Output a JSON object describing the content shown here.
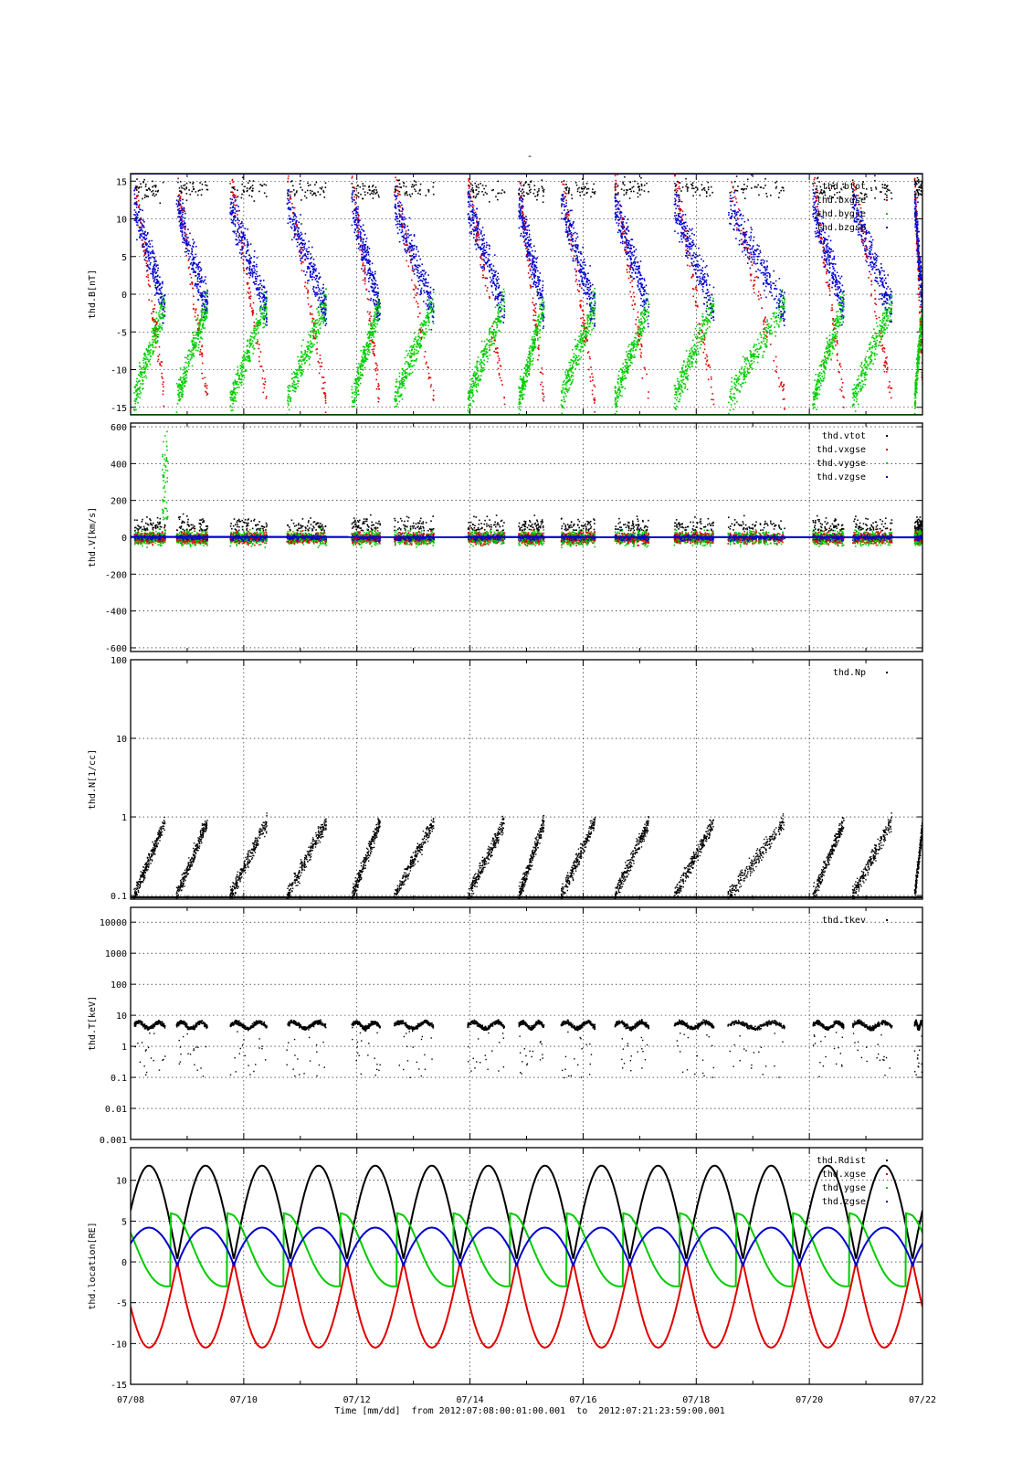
{
  "figure": {
    "top_label": "-",
    "x_axis_label": "Time [mm/dd]  from 2012:07:08:00:01:00.001  to  2012:07:21:23:59:00.001",
    "x_ticks": [
      "07/08",
      "07/10",
      "07/12",
      "07/14",
      "07/16",
      "07/18",
      "07/20",
      "07/22"
    ],
    "x_range_days": [
      0,
      14
    ],
    "colors": {
      "black": "#000000",
      "red": "#e00000",
      "green": "#00cc00",
      "blue": "#0000cc",
      "grid": "#000000"
    }
  },
  "chart_data": [
    {
      "type": "scatter",
      "id": "B",
      "ylabel": "thd.B[nT]",
      "ylim": [
        -16,
        16
      ],
      "yticks": [
        "15",
        "10",
        "5",
        "0",
        "-5",
        "-10",
        "-15"
      ],
      "ytick_values": [
        15,
        10,
        5,
        0,
        -5,
        -10,
        -15
      ],
      "grid": true,
      "legend_position": "top-right",
      "series": [
        {
          "name": "thd.btot",
          "color": "#000000"
        },
        {
          "name": "thd.bxgse",
          "color": "#e00000"
        },
        {
          "name": "thd.bygse",
          "color": "#00cc00"
        },
        {
          "name": "thd.bzgse",
          "color": "#0000cc"
        }
      ]
    },
    {
      "type": "scatter",
      "id": "V",
      "ylabel": "thd.V[km/s]",
      "ylim": [
        -620,
        620
      ],
      "yticks": [
        "600",
        "400",
        "200",
        "0",
        "-200",
        "-400",
        "-600"
      ],
      "ytick_values": [
        600,
        400,
        200,
        0,
        -200,
        -400,
        -600
      ],
      "grid": true,
      "legend_position": "top-right",
      "series": [
        {
          "name": "thd.vtot",
          "color": "#000000"
        },
        {
          "name": "thd.vxgse",
          "color": "#e00000"
        },
        {
          "name": "thd.vygse",
          "color": "#00cc00"
        },
        {
          "name": "thd.vzgse",
          "color": "#0000cc"
        }
      ]
    },
    {
      "type": "scatter",
      "id": "N",
      "ylabel": "thd.N[1/cc]",
      "ylim": [
        0.09,
        100
      ],
      "yscale": "log",
      "yticks": [
        "100",
        "10",
        "1",
        "0.1"
      ],
      "ytick_values": [
        100,
        10,
        1,
        0.1
      ],
      "grid": true,
      "legend_position": "top-right",
      "series": [
        {
          "name": "thd.Np",
          "color": "#000000"
        }
      ]
    },
    {
      "type": "scatter",
      "id": "T",
      "ylabel": "thd.T[keV]",
      "ylim": [
        0.001,
        30000
      ],
      "yscale": "log",
      "yticks": [
        "10000",
        "1000",
        "100",
        "10",
        "1",
        "0.1",
        "0.01",
        "0.001"
      ],
      "ytick_values": [
        10000,
        1000,
        100,
        10,
        1,
        0.1,
        0.01,
        0.001
      ],
      "grid": true,
      "legend_position": "top-right",
      "series": [
        {
          "name": "thd.tkev",
          "color": "#000000"
        }
      ]
    },
    {
      "type": "line",
      "id": "loc",
      "ylabel": "thd.location[RE]",
      "ylim": [
        -15,
        14
      ],
      "yticks": [
        "10",
        "5",
        "0",
        "-5",
        "-10",
        "-15"
      ],
      "ytick_values": [
        10,
        5,
        0,
        -5,
        -10,
        -15
      ],
      "grid": true,
      "legend_position": "top-right",
      "orbit_period_days": 1.0,
      "series": [
        {
          "name": "thd.Rdist",
          "color": "#000000",
          "min": 0.3,
          "max": 11.8
        },
        {
          "name": "thd.xgse",
          "color": "#e00000",
          "min": -10.5,
          "max": 0
        },
        {
          "name": "thd.ygse",
          "color": "#00cc00",
          "min": -3.0,
          "max": 6.0
        },
        {
          "name": "thd.zgse",
          "color": "#0000cc",
          "min": -0.6,
          "max": 4.2
        }
      ]
    }
  ]
}
